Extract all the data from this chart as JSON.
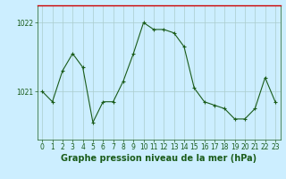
{
  "x": [
    0,
    1,
    2,
    3,
    4,
    5,
    6,
    7,
    8,
    9,
    10,
    11,
    12,
    13,
    14,
    15,
    16,
    17,
    18,
    19,
    20,
    21,
    22,
    23
  ],
  "y": [
    1021.0,
    1020.85,
    1021.3,
    1021.55,
    1021.35,
    1020.55,
    1020.85,
    1020.85,
    1021.15,
    1021.55,
    1022.0,
    1021.9,
    1021.9,
    1021.85,
    1021.65,
    1021.05,
    1020.85,
    1020.8,
    1020.75,
    1020.6,
    1020.6,
    1020.75,
    1021.2,
    1020.85
  ],
  "line_color": "#1a5c1a",
  "marker": "+",
  "marker_size": 3,
  "bg_color": "#cceeff",
  "grid_color": "#aacccc",
  "top_border_color": "#cc0000",
  "xlabel": "Graphe pression niveau de la mer (hPa)",
  "xlabel_fontsize": 7,
  "yticks": [
    1021,
    1022
  ],
  "ylim": [
    1020.3,
    1022.25
  ],
  "xlim": [
    -0.5,
    23.5
  ],
  "xticks": [
    0,
    1,
    2,
    3,
    4,
    5,
    6,
    7,
    8,
    9,
    10,
    11,
    12,
    13,
    14,
    15,
    16,
    17,
    18,
    19,
    20,
    21,
    22,
    23
  ],
  "tick_fontsize": 5.5,
  "figsize": [
    3.2,
    2.0
  ],
  "dpi": 100
}
